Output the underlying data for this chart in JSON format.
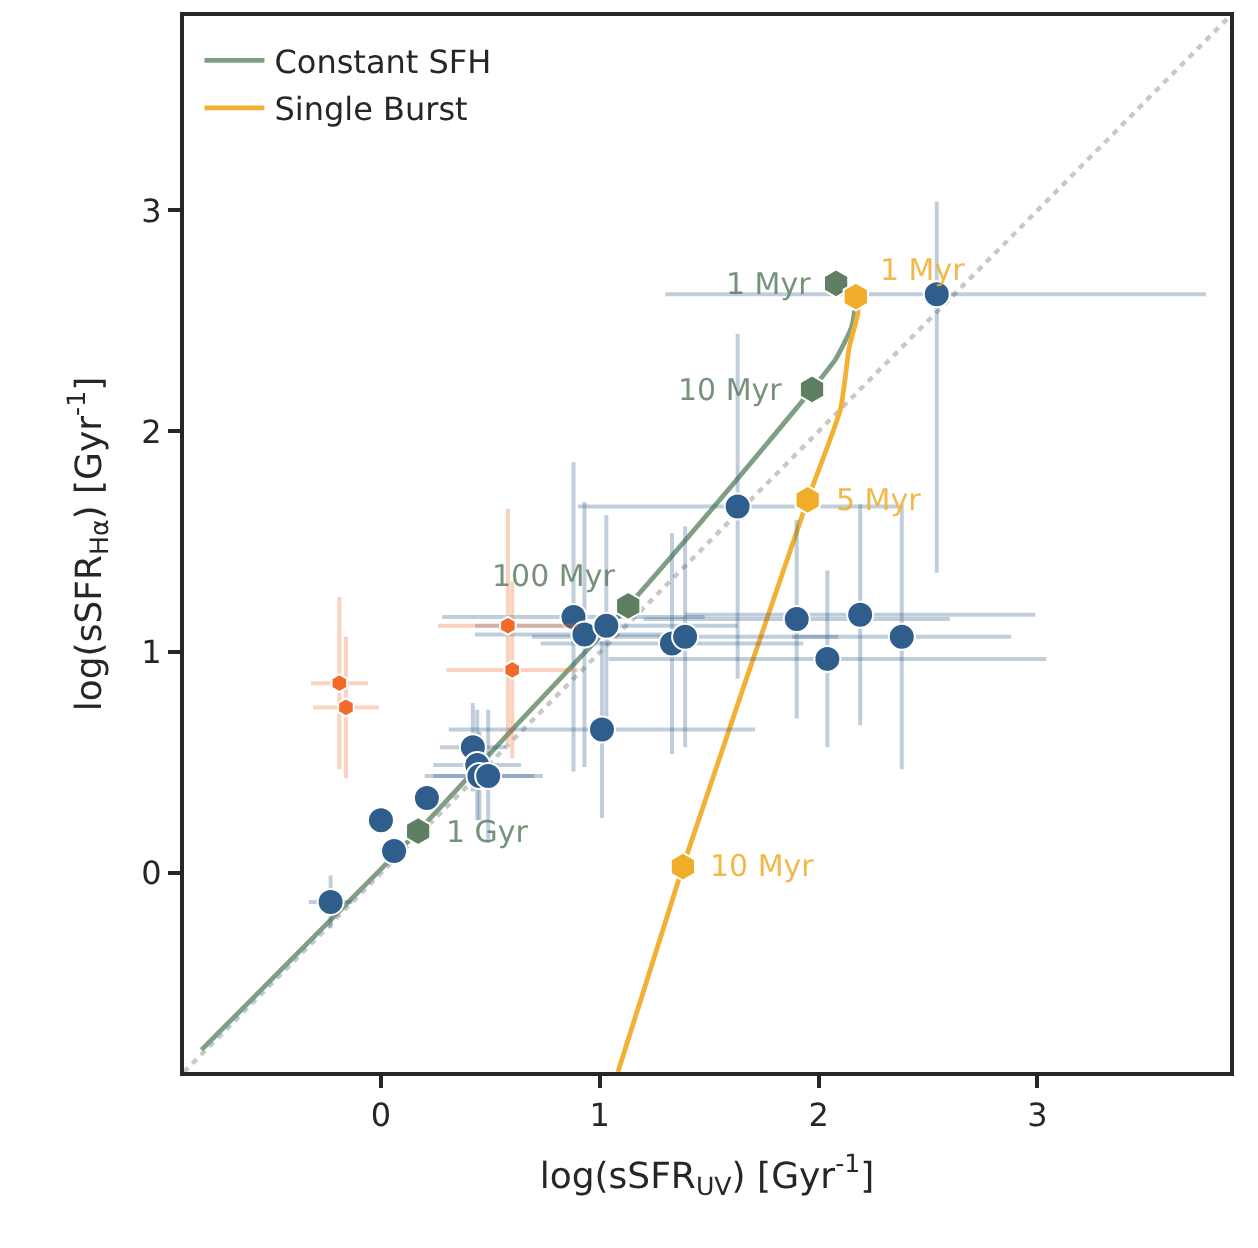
{
  "chart_data": {
    "type": "scatter",
    "xlabel": "log(sSFR$_{UV}$) [Gyr$^{-1}$]",
    "ylabel": "log(sSFR$_{Hα}$) [Gyr$^{-1}$]",
    "xlim": [
      -0.9,
      3.88
    ],
    "ylim": [
      -0.9,
      3.88
    ],
    "xticks": [
      0,
      1,
      2,
      3
    ],
    "yticks": [
      0,
      1,
      2,
      3
    ],
    "legend": "top left",
    "series": [
      {
        "type": "line",
        "color": "#c8c8c8",
        "line_style": "dotted",
        "x": [
          -0.9,
          3.88
        ],
        "values": [
          -0.9,
          3.88
        ]
      },
      {
        "type": "line",
        "name": "Constant SFH",
        "color": "#7f9f85",
        "line_style": "solid",
        "x": [
          -0.82,
          0.17,
          0.6,
          1.13,
          1.6,
          1.97,
          2.08,
          2.15,
          2.17,
          2.17
        ],
        "values": [
          -0.8,
          0.19,
          0.65,
          1.21,
          1.75,
          2.19,
          2.33,
          2.47,
          2.58,
          2.62
        ]
      },
      {
        "type": "line",
        "name": "Single Burst",
        "color": "#f2b134",
        "line_style": "solid",
        "x": [
          1.083,
          1.38,
          1.95,
          2.1,
          2.14,
          2.18,
          2.17
        ],
        "values": [
          -0.9,
          0.03,
          1.69,
          2.1,
          2.38,
          2.54,
          2.61
        ]
      },
      {
        "color": "#2f5d8c",
        "marker": "circle",
        "x": [
          -0.23,
          0.0,
          0.06,
          0.21,
          0.42,
          0.44,
          0.45,
          0.49,
          0.88,
          0.93,
          1.03,
          1.01,
          1.33,
          1.39,
          1.63,
          1.9,
          2.04,
          2.19,
          2.38,
          2.54
        ],
        "values": [
          -0.13,
          0.24,
          0.1,
          0.34,
          0.57,
          0.49,
          0.44,
          0.44,
          1.16,
          1.08,
          1.12,
          0.65,
          1.04,
          1.07,
          1.66,
          1.15,
          0.97,
          1.17,
          1.07,
          2.62
        ],
        "xerrors": [
          0.1,
          null,
          null,
          null,
          0.15,
          0.2,
          0.25,
          0.25,
          0.6,
          0.5,
          0.6,
          0.7,
          0.6,
          0.7,
          0.73,
          0.7,
          1.0,
          0.8,
          0.5,
          [
            1.3,
            3.77
          ]
        ],
        "errors": [
          0.12,
          null,
          null,
          null,
          0.2,
          0.25,
          0.2,
          0.3,
          0.7,
          0.6,
          0.5,
          0.4,
          0.5,
          0.5,
          0.78,
          0.45,
          0.4,
          0.5,
          0.6,
          [
            1.36,
            3.04
          ]
        ]
      },
      {
        "color": "#f06a2a",
        "x": [
          -0.19,
          -0.16,
          0.58,
          0.6
        ],
        "values": [
          0.86,
          0.75,
          1.12,
          0.92
        ],
        "xerrors": [
          0.13,
          0.15,
          0.32,
          0.3
        ],
        "errors": [
          0.39,
          0.32,
          0.53,
          0.4
        ]
      },
      {
        "color": "#5e7f62",
        "x": [
          0.17,
          1.13,
          1.97,
          2.08
        ],
        "values": [
          0.19,
          1.21,
          2.19,
          2.67
        ]
      },
      {
        "color": "#f0ad2a",
        "x": [
          1.38,
          1.95,
          2.17
        ],
        "values": [
          0.03,
          1.69,
          2.61
        ]
      }
    ],
    "annotations": [
      {
        "text": "1 Gyr",
        "x": 0.17,
        "y": 0.19
      },
      {
        "text": "100 Myr",
        "x": 1.13,
        "y": 1.21
      },
      {
        "text": "10 Myr",
        "x": 1.97,
        "y": 2.19
      },
      {
        "text": "1 Myr",
        "x": 2.08,
        "y": 2.67
      },
      {
        "text": "10 Myr",
        "x": 1.38,
        "y": 0.03
      },
      {
        "text": "5 Myr",
        "x": 1.95,
        "y": 1.69
      },
      {
        "text": "1 Myr",
        "x": 2.17,
        "y": 2.61
      }
    ]
  }
}
